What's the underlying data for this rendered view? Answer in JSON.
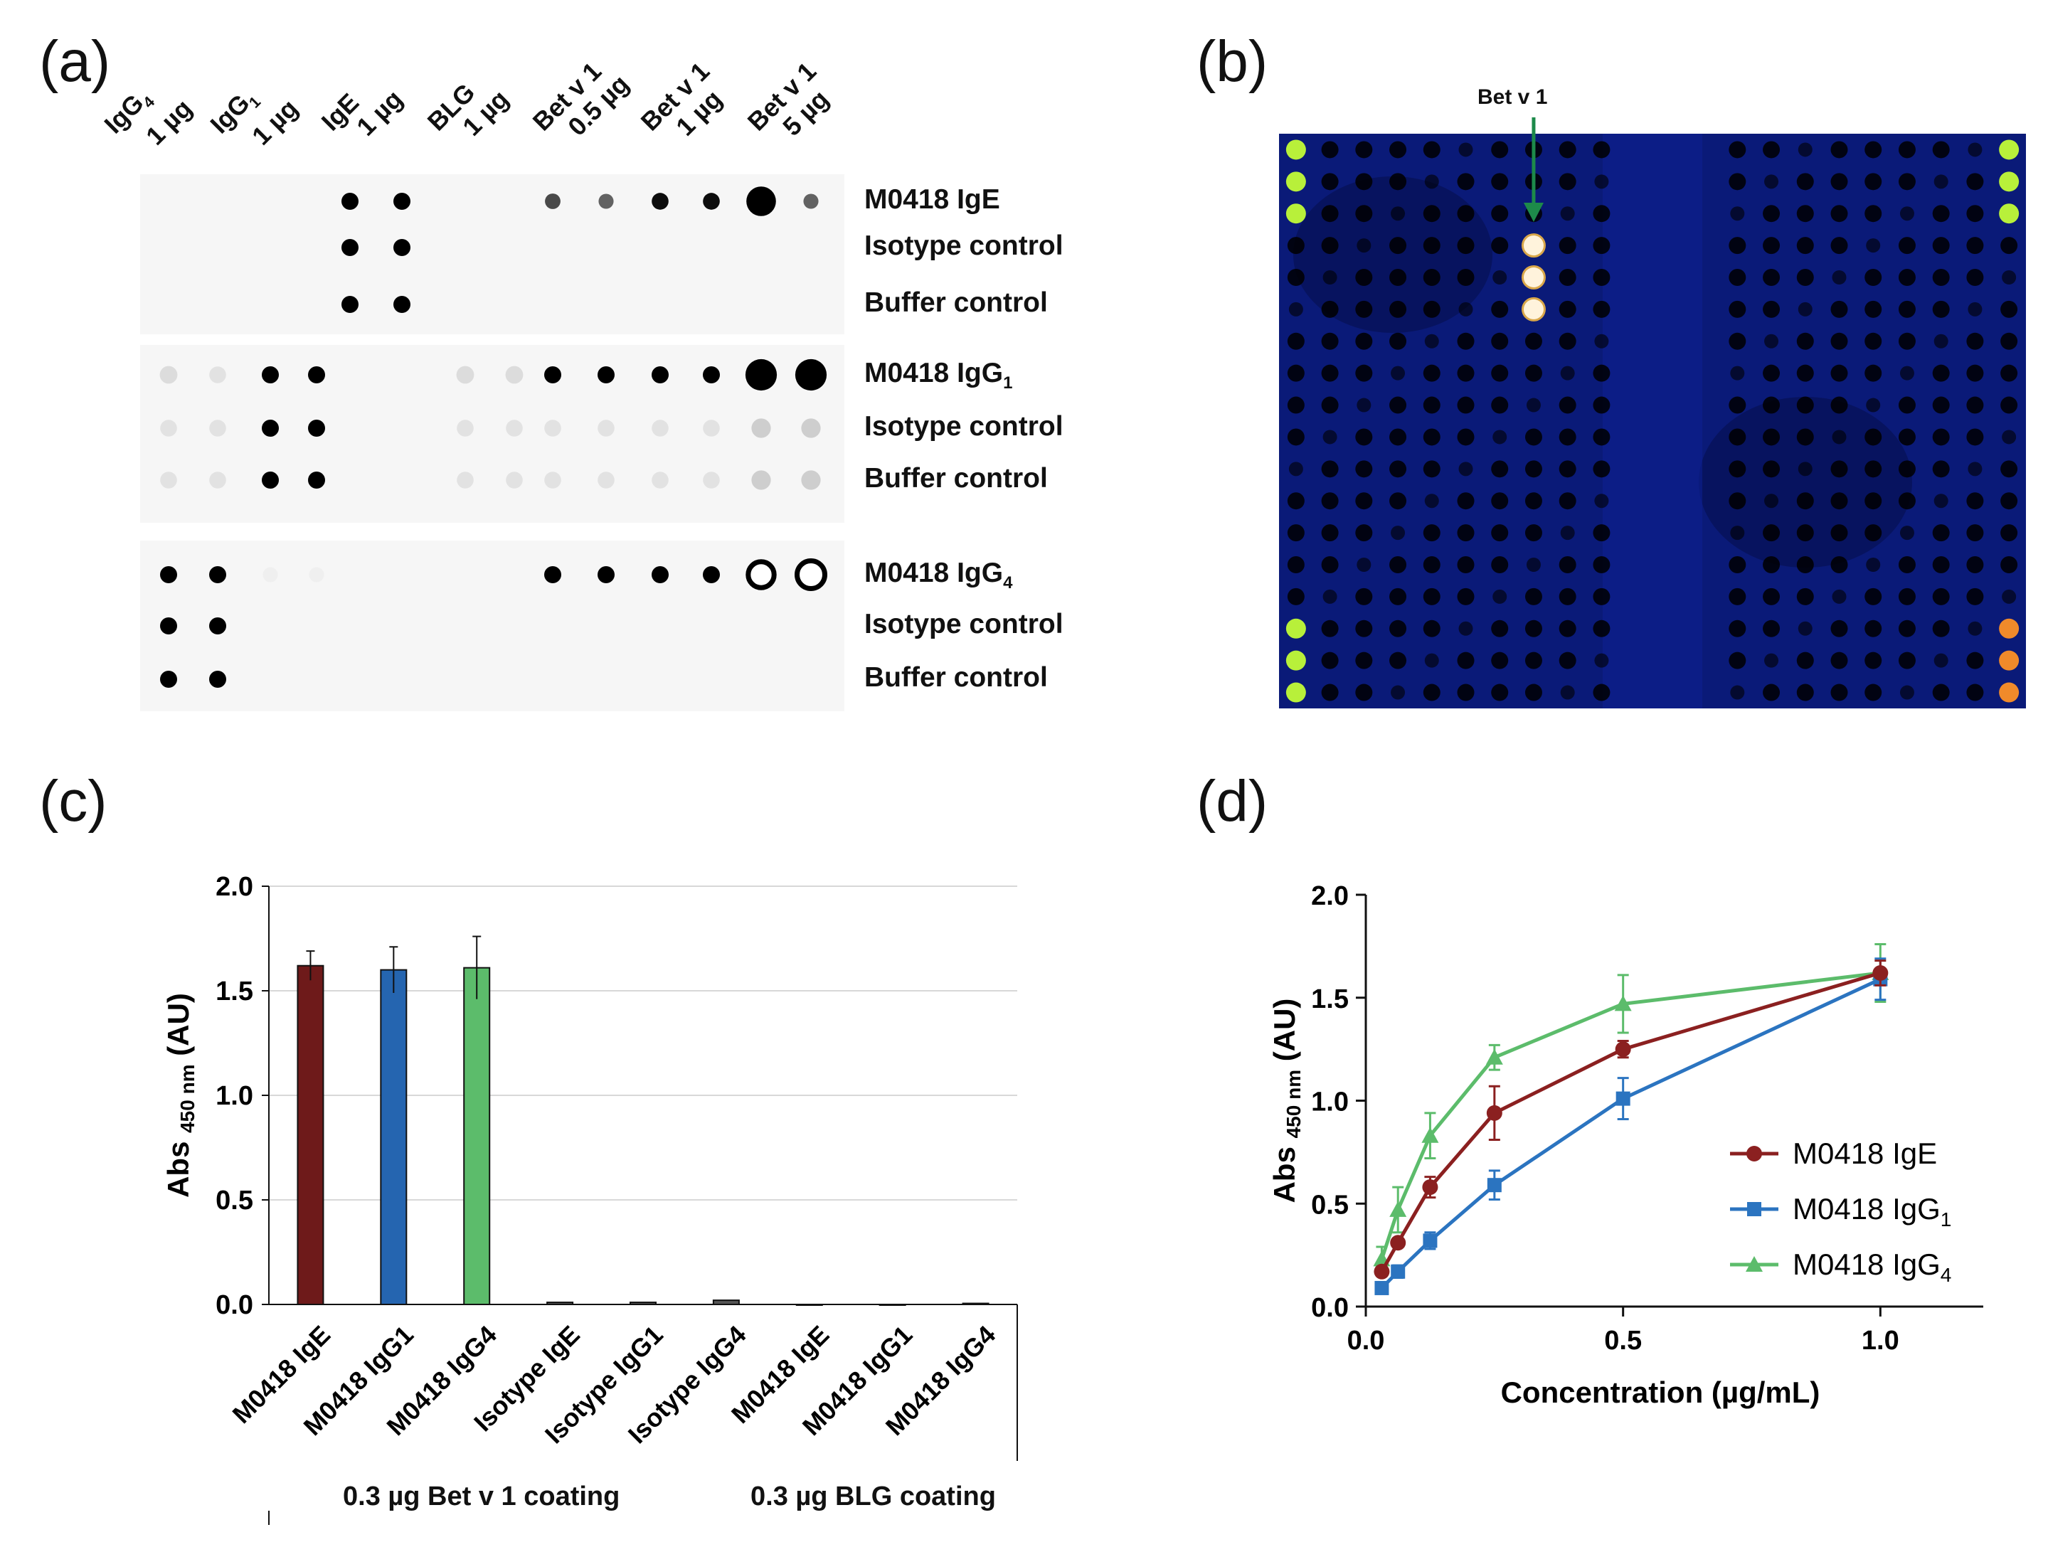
{
  "panels": {
    "a": {
      "label": "(a)",
      "columns": [
        {
          "line1": "IgG",
          "sub": "4",
          "line2": "1 µg"
        },
        {
          "line1": "IgG",
          "sub": "1",
          "line2": "1 µg"
        },
        {
          "line1": "IgE",
          "sub": "",
          "line2": "1 µg"
        },
        {
          "line1": "BLG",
          "sub": "",
          "line2": "1 µg"
        },
        {
          "line1": "Bet v 1",
          "sub": "",
          "line2": "0.5 µg"
        },
        {
          "line1": "Bet v 1",
          "sub": "",
          "line2": "1 µg"
        },
        {
          "line1": "Bet v 1",
          "sub": "",
          "line2": "5 µg"
        }
      ],
      "blocks": [
        {
          "rows": [
            {
              "name": "M0418 IgE",
              "sub": ""
            },
            {
              "name": "Isotype control",
              "sub": ""
            },
            {
              "name": "Buffer control",
              "sub": ""
            }
          ]
        },
        {
          "rows": [
            {
              "name": "M0418 IgG",
              "sub": "1"
            },
            {
              "name": "Isotype control",
              "sub": ""
            },
            {
              "name": "Buffer control",
              "sub": ""
            }
          ]
        },
        {
          "rows": [
            {
              "name": "M0418 IgG",
              "sub": "4"
            },
            {
              "name": "Isotype control",
              "sub": ""
            },
            {
              "name": "Buffer control",
              "sub": ""
            }
          ]
        }
      ]
    },
    "b": {
      "label": "(b)",
      "arrow_label": "Bet v 1",
      "colors": {
        "background": "#0a1a78",
        "control_spot": "#b8f03a",
        "bet_spot": "#fff3dc",
        "ref_spot": "#f08a2a"
      }
    },
    "c": {
      "label": "(c)",
      "group_labels": [
        "0.3 µg Bet v 1 coating",
        "0.3 µg BLG coating"
      ]
    },
    "d": {
      "label": "(d)"
    }
  },
  "chart_data": [
    {
      "panel": "c",
      "type": "bar",
      "categories": [
        "M0418 IgE",
        "M0418 IgG1",
        "M0418 IgG4",
        "Isotype IgE",
        "Isotype IgG1",
        "Isotype IgG4",
        "M0418 IgE",
        "M0418 IgG1",
        "M0418 IgG4"
      ],
      "values": [
        1.62,
        1.6,
        1.61,
        0.01,
        0.01,
        0.02,
        0.0,
        0.0,
        0.005
      ],
      "errors": [
        0.07,
        0.11,
        0.15,
        0.0,
        0.0,
        0.0,
        0.0,
        0.0,
        0.0
      ],
      "bar_colors": [
        "#6e1a1a",
        "#2565b0",
        "#5cbc6b",
        "#555555",
        "#555555",
        "#555555",
        "#555555",
        "#555555",
        "#555555"
      ],
      "ylabel": "Abs",
      "ylabel_sub": "450 nm",
      "ylabel_unit": "(AU)",
      "ylim": [
        0,
        2.0
      ],
      "yticks": [
        "0.0",
        "0.5",
        "1.0",
        "1.5",
        "2.0"
      ],
      "grid": true
    },
    {
      "panel": "d",
      "type": "line",
      "xlabel": "Concentration (µg/mL)",
      "ylabel": "Abs",
      "ylabel_sub": "450 nm",
      "ylabel_unit": "(AU)",
      "xlim": [
        0,
        1.2
      ],
      "ylim": [
        0,
        2.0
      ],
      "xticks": [
        "0.0",
        "0.5",
        "1.0"
      ],
      "yticks": [
        "0.0",
        "0.5",
        "1.0",
        "1.5",
        "2.0"
      ],
      "x": [
        0.031,
        0.0625,
        0.125,
        0.25,
        0.5,
        1.0
      ],
      "series": [
        {
          "name": "M0418 IgE",
          "legend": "M0418 IgE",
          "legend_sub": "",
          "color": "#8b2020",
          "marker": "circle",
          "values": [
            0.17,
            0.31,
            0.58,
            0.94,
            1.25,
            1.62
          ],
          "errors": [
            0.02,
            0.02,
            0.05,
            0.13,
            0.04,
            0.06
          ]
        },
        {
          "name": "M0418 IgG1",
          "legend": "M0418 IgG",
          "legend_sub": "1",
          "color": "#2b74c0",
          "marker": "square",
          "values": [
            0.09,
            0.17,
            0.32,
            0.59,
            1.01,
            1.59
          ],
          "errors": [
            0.02,
            0.03,
            0.04,
            0.07,
            0.1,
            0.1
          ]
        },
        {
          "name": "M0418 IgG4",
          "legend": "M0418 IgG",
          "legend_sub": "4",
          "color": "#5cbc6b",
          "marker": "triangle",
          "values": [
            0.23,
            0.47,
            0.83,
            1.21,
            1.47,
            1.62
          ],
          "errors": [
            0.06,
            0.11,
            0.11,
            0.06,
            0.14,
            0.14
          ]
        }
      ]
    }
  ]
}
